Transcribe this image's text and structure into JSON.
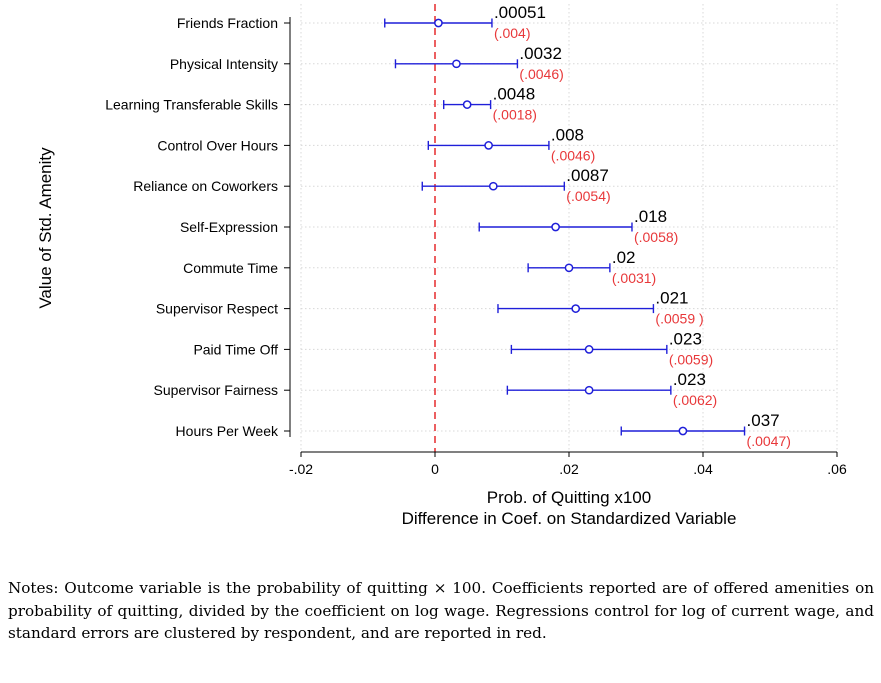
{
  "chart_data": {
    "type": "scatter",
    "orientation": "horizontal",
    "xlabel": "Prob. of Quitting x100",
    "xlabel2": "Difference in Coef. on Standardized Variable",
    "ylabel": "Value of Std. Amenity",
    "xlim": [
      -0.02,
      0.06
    ],
    "xticks": [
      {
        "value": -0.02,
        "label": "-.02"
      },
      {
        "value": 0,
        "label": "0"
      },
      {
        "value": 0.02,
        "label": ".02"
      },
      {
        "value": 0.04,
        "label": ".04"
      },
      {
        "value": 0.06,
        "label": ".06"
      }
    ],
    "reference_line": 0,
    "grid": true,
    "colors": {
      "marker": "#1f1fd9",
      "se": "#e8383a",
      "refline": "#e8383a",
      "grid": "#d8d8d8"
    },
    "items": [
      {
        "label": "Friends Fraction",
        "coef": 0.00051,
        "lo": -0.0075,
        "hi": 0.0085,
        "coef_label": ".00051",
        "se_label": "(.004)"
      },
      {
        "label": "Physical Intensity",
        "coef": 0.0032,
        "lo": -0.0059,
        "hi": 0.0123,
        "coef_label": ".0032",
        "se_label": "(.0046)"
      },
      {
        "label": "Learning Transferable Skills",
        "coef": 0.0048,
        "lo": 0.0013,
        "hi": 0.0083,
        "coef_label": ".0048",
        "se_label": "(.0018)"
      },
      {
        "label": "Control Over Hours",
        "coef": 0.008,
        "lo": -0.001,
        "hi": 0.017,
        "coef_label": ".008",
        "se_label": "(.0046)"
      },
      {
        "label": "Reliance on Coworkers",
        "coef": 0.0087,
        "lo": -0.0019,
        "hi": 0.0193,
        "coef_label": ".0087",
        "se_label": "(.0054)"
      },
      {
        "label": "Self-Expression",
        "coef": 0.018,
        "lo": 0.0066,
        "hi": 0.0294,
        "coef_label": ".018",
        "se_label": "(.0058)"
      },
      {
        "label": "Commute Time",
        "coef": 0.02,
        "lo": 0.0139,
        "hi": 0.0261,
        "coef_label": ".02",
        "se_label": "(.0031)"
      },
      {
        "label": "Supervisor Respect",
        "coef": 0.021,
        "lo": 0.0094,
        "hi": 0.0326,
        "coef_label": ".021",
        "se_label": "(.0059 )"
      },
      {
        "label": "Paid Time Off",
        "coef": 0.023,
        "lo": 0.0114,
        "hi": 0.0346,
        "coef_label": ".023",
        "se_label": "(.0059)"
      },
      {
        "label": "Supervisor Fairness",
        "coef": 0.023,
        "lo": 0.0108,
        "hi": 0.0352,
        "coef_label": ".023",
        "se_label": "(.0062)"
      },
      {
        "label": "Hours Per Week",
        "coef": 0.037,
        "lo": 0.0278,
        "hi": 0.0462,
        "coef_label": ".037",
        "se_label": "(.0047)"
      }
    ]
  },
  "notes": "Notes: Outcome variable is the probability of quitting × 100. Coefficients reported are of offered amenities on probability of quitting, divided by the coefficient on log wage. Regressions control for log of current wage, and standard errors are clustered by respondent, and are reported in red."
}
